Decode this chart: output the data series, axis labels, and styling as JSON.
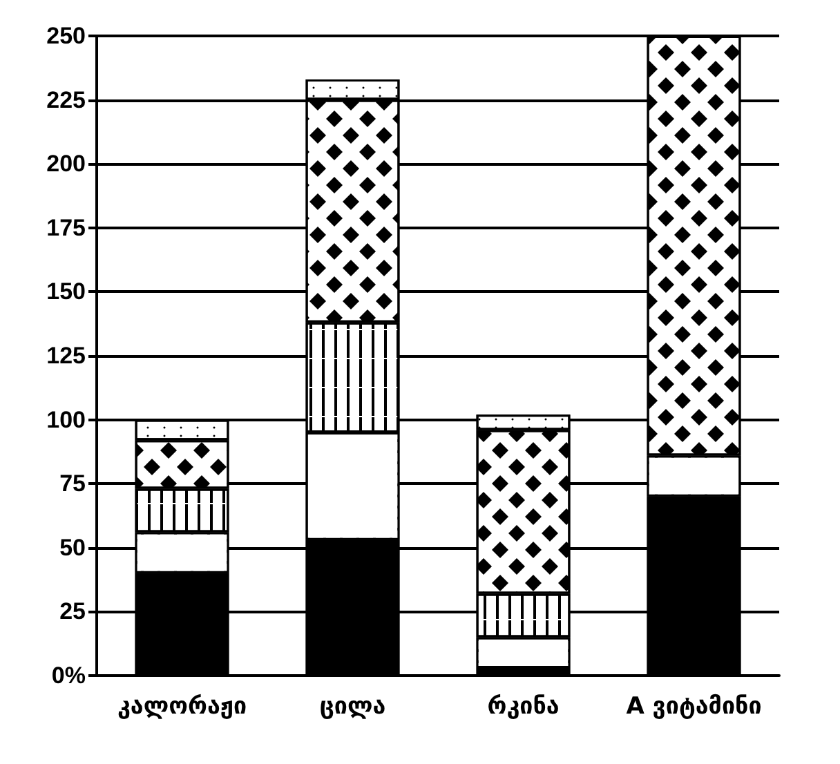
{
  "chart_data": {
    "type": "bar",
    "stacked": true,
    "categories": [
      "კალორაჟი",
      "ცილა",
      "რკინა",
      "A ვიტამინი"
    ],
    "series": [
      {
        "color": "#000000",
        "values": [
          40,
          53,
          3,
          70
        ]
      },
      {
        "color": "#ffffff",
        "values": [
          16,
          42,
          12,
          16
        ]
      },
      {
        "color": "#ffffff",
        "values": [
          17,
          43,
          17,
          null
        ]
      },
      {
        "color": "#ffffff",
        "values": [
          19,
          87,
          64,
          164
        ]
      },
      {
        "color": "#ffffff",
        "values": [
          8,
          8,
          6,
          null
        ]
      }
    ],
    "ylim": [
      0,
      250
    ],
    "yticks": [
      {
        "value": 0,
        "label": "0%"
      },
      25,
      50,
      75,
      100,
      125,
      150,
      175,
      200,
      225,
      250
    ],
    "grid": "y"
  }
}
